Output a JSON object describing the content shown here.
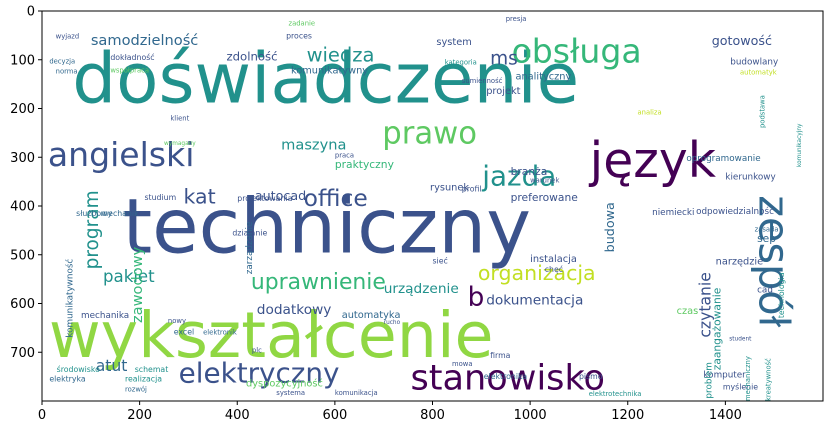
{
  "chart_data": {
    "type": "wordcloud",
    "title": "",
    "xlabel": "",
    "ylabel": "",
    "xlim": [
      0,
      1600
    ],
    "ylim": [
      800,
      0
    ],
    "x_ticks": [
      0,
      200,
      400,
      600,
      800,
      1000,
      1200,
      1400
    ],
    "y_ticks": [
      0,
      100,
      200,
      300,
      400,
      500,
      600,
      700
    ],
    "grid": false,
    "colormap": "viridis",
    "words": [
      {
        "text": "doświadczenie",
        "x": 62,
        "y": 188,
        "size": 142,
        "rotate": 0,
        "color": "#21918c"
      },
      {
        "text": "techniczny",
        "x": 165,
        "y": 495,
        "size": 155,
        "rotate": 0,
        "color": "#3b528b"
      },
      {
        "text": "wykształcenie",
        "x": 14,
        "y": 710,
        "size": 130,
        "rotate": 0,
        "color": "#90d743"
      },
      {
        "text": "język",
        "x": 1122,
        "y": 340,
        "size": 100,
        "rotate": 0,
        "color": "#440154"
      },
      {
        "text": "zespół",
        "x": 1470,
        "y": 378,
        "size": 85,
        "rotate": 90,
        "color": "#31688e"
      },
      {
        "text": "stanowisko",
        "x": 755,
        "y": 776,
        "size": 72,
        "rotate": 0,
        "color": "#440154"
      },
      {
        "text": "obsługa",
        "x": 962,
        "y": 106,
        "size": 68,
        "rotate": 0,
        "color": "#35b779"
      },
      {
        "text": "angielski",
        "x": 12,
        "y": 318,
        "size": 68,
        "rotate": 0,
        "color": "#3b528b"
      },
      {
        "text": "prawo",
        "x": 697,
        "y": 272,
        "size": 63,
        "rotate": 0,
        "color": "#5ec962"
      },
      {
        "text": "elektryczny",
        "x": 280,
        "y": 762,
        "size": 57,
        "rotate": 0,
        "color": "#3b528b"
      },
      {
        "text": "jazda",
        "x": 902,
        "y": 358,
        "size": 57,
        "rotate": 0,
        "color": "#21918c"
      },
      {
        "text": "organizacja",
        "x": 893,
        "y": 552,
        "size": 42,
        "rotate": 0,
        "color": "#c2df23"
      },
      {
        "text": "uprawnienie",
        "x": 428,
        "y": 570,
        "size": 45,
        "rotate": 0,
        "color": "#35b779"
      },
      {
        "text": "office",
        "x": 536,
        "y": 400,
        "size": 48,
        "rotate": 0,
        "color": "#3b528b"
      },
      {
        "text": "wiedza",
        "x": 542,
        "y": 104,
        "size": 40,
        "rotate": 0,
        "color": "#21918c"
      },
      {
        "text": "kat",
        "x": 290,
        "y": 395,
        "size": 42,
        "rotate": 0,
        "color": "#3b528b"
      },
      {
        "text": "program",
        "x": 115,
        "y": 530,
        "size": 38,
        "rotate": -90,
        "color": "#21918c"
      },
      {
        "text": "pakiet",
        "x": 125,
        "y": 556,
        "size": 34,
        "rotate": 0,
        "color": "#21918c"
      },
      {
        "text": "atut",
        "x": 110,
        "y": 738,
        "size": 32,
        "rotate": 0,
        "color": "#31688e"
      },
      {
        "text": "dokumentacja",
        "x": 910,
        "y": 602,
        "size": 28,
        "rotate": 0,
        "color": "#3b528b"
      },
      {
        "text": "czytanie",
        "x": 1370,
        "y": 670,
        "size": 32,
        "rotate": -90,
        "color": "#3b528b"
      },
      {
        "text": "samodzielność",
        "x": 100,
        "y": 70,
        "size": 30,
        "rotate": 0,
        "color": "#31688e"
      },
      {
        "text": "maszyna",
        "x": 490,
        "y": 284,
        "size": 30,
        "rotate": 0,
        "color": "#21918c"
      },
      {
        "text": "zawodowy",
        "x": 205,
        "y": 640,
        "size": 30,
        "rotate": -90,
        "color": "#35b779"
      },
      {
        "text": "gotowość",
        "x": 1372,
        "y": 70,
        "size": 26,
        "rotate": 0,
        "color": "#3b528b"
      },
      {
        "text": "ms",
        "x": 918,
        "y": 110,
        "size": 38,
        "rotate": 0,
        "color": "#3b528b"
      },
      {
        "text": "b",
        "x": 872,
        "y": 605,
        "size": 54,
        "rotate": 0,
        "color": "#440154"
      },
      {
        "text": "urządzenie",
        "x": 700,
        "y": 578,
        "size": 28,
        "rotate": 0,
        "color": "#21918c"
      },
      {
        "text": "dodatkowy",
        "x": 440,
        "y": 622,
        "size": 28,
        "rotate": 0,
        "color": "#3b528b"
      },
      {
        "text": "autocad",
        "x": 436,
        "y": 388,
        "size": 26,
        "rotate": 0,
        "color": "#3b528b"
      },
      {
        "text": "dyspozycyjność",
        "x": 418,
        "y": 770,
        "size": 20,
        "rotate": 0,
        "color": "#5ec962"
      },
      {
        "text": "zdolność",
        "x": 378,
        "y": 102,
        "size": 24,
        "rotate": 0,
        "color": "#3b528b"
      },
      {
        "text": "komunikatywność",
        "x": 62,
        "y": 670,
        "size": 18,
        "rotate": -90,
        "color": "#31688e"
      },
      {
        "text": "zaangażowanie",
        "x": 1390,
        "y": 737,
        "size": 22,
        "rotate": -90,
        "color": "#21918c"
      },
      {
        "text": "budowa",
        "x": 1172,
        "y": 495,
        "size": 26,
        "rotate": -90,
        "color": "#31688e"
      },
      {
        "text": "preferowane",
        "x": 960,
        "y": 390,
        "size": 22,
        "rotate": 0,
        "color": "#3b528b"
      },
      {
        "text": "instalacja",
        "x": 1000,
        "y": 515,
        "size": 20,
        "rotate": 0,
        "color": "#3b528b"
      },
      {
        "text": "branża",
        "x": 960,
        "y": 336,
        "size": 22,
        "rotate": 0,
        "color": "#3b528b"
      },
      {
        "text": "system",
        "x": 808,
        "y": 70,
        "size": 20,
        "rotate": 0,
        "color": "#3b528b"
      },
      {
        "text": "narzędzie",
        "x": 1380,
        "y": 520,
        "size": 20,
        "rotate": 0,
        "color": "#3b528b"
      },
      {
        "text": "sep",
        "x": 1465,
        "y": 474,
        "size": 22,
        "rotate": 0,
        "color": "#31688e"
      },
      {
        "text": "automatyka",
        "x": 614,
        "y": 630,
        "size": 20,
        "rotate": 0,
        "color": "#31688e"
      },
      {
        "text": "praktyczny",
        "x": 600,
        "y": 322,
        "size": 22,
        "rotate": 0,
        "color": "#35b779"
      },
      {
        "text": "komunikatywny",
        "x": 510,
        "y": 128,
        "size": 20,
        "rotate": 0,
        "color": "#31688e"
      },
      {
        "text": "analityczny",
        "x": 970,
        "y": 140,
        "size": 20,
        "rotate": 0,
        "color": "#31688e"
      },
      {
        "text": "oprogramowanie",
        "x": 1320,
        "y": 308,
        "size": 18,
        "rotate": 0,
        "color": "#31688e"
      },
      {
        "text": "budowlany",
        "x": 1410,
        "y": 110,
        "size": 18,
        "rotate": 0,
        "color": "#3b528b"
      },
      {
        "text": "odpowiedzialność",
        "x": 1340,
        "y": 416,
        "size": 18,
        "rotate": 0,
        "color": "#3b528b"
      },
      {
        "text": "niemiecki",
        "x": 1250,
        "y": 418,
        "size": 18,
        "rotate": 0,
        "color": "#3b528b"
      },
      {
        "text": "kierunkowy",
        "x": 1400,
        "y": 346,
        "size": 18,
        "rotate": 0,
        "color": "#3b528b"
      },
      {
        "text": "projekt",
        "x": 910,
        "y": 170,
        "size": 20,
        "rotate": 0,
        "color": "#3b528b"
      },
      {
        "text": "rysunek",
        "x": 795,
        "y": 368,
        "size": 20,
        "rotate": 0,
        "color": "#3b528b"
      },
      {
        "text": "działanie",
        "x": 390,
        "y": 460,
        "size": 16,
        "rotate": 0,
        "color": "#3b528b"
      },
      {
        "text": "zarządzanie",
        "x": 430,
        "y": 540,
        "size": 18,
        "rotate": -90,
        "color": "#31688e"
      },
      {
        "text": "dokładność",
        "x": 140,
        "y": 100,
        "size": 16,
        "rotate": 0,
        "color": "#3b528b"
      },
      {
        "text": "mechanika",
        "x": 80,
        "y": 630,
        "size": 18,
        "rotate": 0,
        "color": "#3b528b"
      },
      {
        "text": "mechanik",
        "x": 120,
        "y": 420,
        "size": 16,
        "rotate": 0,
        "color": "#31688e"
      },
      {
        "text": "służbowy",
        "x": 70,
        "y": 420,
        "size": 16,
        "rotate": 0,
        "color": "#31688e"
      },
      {
        "text": "studium",
        "x": 210,
        "y": 388,
        "size": 16,
        "rotate": 0,
        "color": "#3b528b"
      },
      {
        "text": "projektowania",
        "x": 400,
        "y": 390,
        "size": 16,
        "rotate": 0,
        "color": "#3b528b"
      },
      {
        "text": "komputer",
        "x": 1355,
        "y": 752,
        "size": 18,
        "rotate": 0,
        "color": "#3b528b"
      },
      {
        "text": "myślenie",
        "x": 1395,
        "y": 776,
        "size": 16,
        "rotate": 0,
        "color": "#3b528b"
      },
      {
        "text": "problem",
        "x": 1372,
        "y": 795,
        "size": 18,
        "rotate": -90,
        "color": "#21918c"
      },
      {
        "text": "mechaniczny",
        "x": 1450,
        "y": 800,
        "size": 14,
        "rotate": -90,
        "color": "#21918c"
      },
      {
        "text": "technologia",
        "x": 1520,
        "y": 630,
        "size": 16,
        "rotate": -90,
        "color": "#21918c"
      },
      {
        "text": "kreatywność",
        "x": 1492,
        "y": 800,
        "size": 14,
        "rotate": -90,
        "color": "#21918c"
      },
      {
        "text": "cad",
        "x": 1465,
        "y": 577,
        "size": 18,
        "rotate": 0,
        "color": "#3b528b"
      },
      {
        "text": "zasada",
        "x": 1460,
        "y": 452,
        "size": 14,
        "rotate": 0,
        "color": "#31688e"
      },
      {
        "text": "czas",
        "x": 1300,
        "y": 622,
        "size": 20,
        "rotate": 0,
        "color": "#5ec962"
      },
      {
        "text": "firma",
        "x": 918,
        "y": 712,
        "size": 16,
        "rotate": 0,
        "color": "#3b528b"
      },
      {
        "text": "elektronika",
        "x": 905,
        "y": 755,
        "size": 16,
        "rotate": 0,
        "color": "#31688e"
      },
      {
        "text": "pismo",
        "x": 1100,
        "y": 755,
        "size": 16,
        "rotate": 0,
        "color": "#3b528b"
      },
      {
        "text": "elektrotechnika",
        "x": 1120,
        "y": 790,
        "size": 14,
        "rotate": 0,
        "color": "#21918c"
      },
      {
        "text": "realizacja",
        "x": 170,
        "y": 760,
        "size": 16,
        "rotate": 0,
        "color": "#21918c"
      },
      {
        "text": "schemat",
        "x": 190,
        "y": 740,
        "size": 16,
        "rotate": 0,
        "color": "#21918c"
      },
      {
        "text": "środowisko",
        "x": 30,
        "y": 740,
        "size": 16,
        "rotate": 0,
        "color": "#21918c"
      },
      {
        "text": "elektryka",
        "x": 15,
        "y": 760,
        "size": 16,
        "rotate": 0,
        "color": "#31688e"
      },
      {
        "text": "komunikacja",
        "x": 600,
        "y": 788,
        "size": 14,
        "rotate": 0,
        "color": "#3b528b"
      },
      {
        "text": "systema",
        "x": 480,
        "y": 788,
        "size": 14,
        "rotate": 0,
        "color": "#3b528b"
      },
      {
        "text": "excel",
        "x": 270,
        "y": 664,
        "size": 16,
        "rotate": 0,
        "color": "#31688e"
      },
      {
        "text": "elektronik",
        "x": 330,
        "y": 664,
        "size": 14,
        "rotate": 0,
        "color": "#31688e"
      },
      {
        "text": "plc",
        "x": 430,
        "y": 700,
        "size": 14,
        "rotate": 0,
        "color": "#3b528b"
      },
      {
        "text": "mowa",
        "x": 840,
        "y": 728,
        "size": 14,
        "rotate": 0,
        "color": "#3b528b"
      },
      {
        "text": "sieć",
        "x": 800,
        "y": 518,
        "size": 16,
        "rotate": 0,
        "color": "#3b528b"
      },
      {
        "text": "chęć",
        "x": 1030,
        "y": 535,
        "size": 16,
        "rotate": 0,
        "color": "#3b528b"
      },
      {
        "text": "presja",
        "x": 950,
        "y": 20,
        "size": 14,
        "rotate": 0,
        "color": "#3b528b"
      },
      {
        "text": "proces",
        "x": 500,
        "y": 56,
        "size": 16,
        "rotate": 0,
        "color": "#3b528b"
      },
      {
        "text": "zadanie",
        "x": 505,
        "y": 30,
        "size": 14,
        "rotate": 0,
        "color": "#5ec962"
      },
      {
        "text": "kategoria",
        "x": 825,
        "y": 110,
        "size": 14,
        "rotate": 0,
        "color": "#21918c"
      },
      {
        "text": "sumienność",
        "x": 860,
        "y": 148,
        "size": 14,
        "rotate": 0,
        "color": "#3b528b"
      },
      {
        "text": "klient",
        "x": 263,
        "y": 225,
        "size": 14,
        "rotate": 0,
        "color": "#3b528b"
      },
      {
        "text": "profil",
        "x": 860,
        "y": 370,
        "size": 16,
        "rotate": 0,
        "color": "#3b528b"
      },
      {
        "text": "praca",
        "x": 600,
        "y": 300,
        "size": 14,
        "rotate": 0,
        "color": "#3b528b"
      },
      {
        "text": "warunek",
        "x": 1000,
        "y": 352,
        "size": 14,
        "rotate": 0,
        "color": "#3b528b"
      },
      {
        "text": "analiza",
        "x": 1220,
        "y": 212,
        "size": 14,
        "rotate": 0,
        "color": "#c2df23"
      },
      {
        "text": "wyjazd",
        "x": 28,
        "y": 56,
        "size": 14,
        "rotate": 0,
        "color": "#3b528b"
      },
      {
        "text": "decyzja",
        "x": 15,
        "y": 108,
        "size": 14,
        "rotate": 0,
        "color": "#31688e"
      },
      {
        "text": "norma",
        "x": 28,
        "y": 128,
        "size": 14,
        "rotate": 0,
        "color": "#31688e"
      },
      {
        "text": "współpraca",
        "x": 140,
        "y": 126,
        "size": 14,
        "rotate": 0,
        "color": "#5ec962"
      },
      {
        "text": "automatyk",
        "x": 1430,
        "y": 130,
        "size": 14,
        "rotate": 0,
        "color": "#c2df23"
      },
      {
        "text": "podstawa",
        "x": 1480,
        "y": 240,
        "size": 14,
        "rotate": -90,
        "color": "#21918c"
      },
      {
        "text": "komunikacyjny",
        "x": 1555,
        "y": 320,
        "size": 12,
        "rotate": -90,
        "color": "#21918c"
      },
      {
        "text": "student",
        "x": 1408,
        "y": 676,
        "size": 12,
        "rotate": 0,
        "color": "#3b528b"
      },
      {
        "text": "rozwój",
        "x": 170,
        "y": 780,
        "size": 14,
        "rotate": 0,
        "color": "#31688e"
      },
      {
        "text": "rucho",
        "x": 700,
        "y": 642,
        "size": 12,
        "rotate": 0,
        "color": "#3b528b"
      },
      {
        "text": "nowy",
        "x": 258,
        "y": 640,
        "size": 14,
        "rotate": 0,
        "color": "#3b528b"
      },
      {
        "text": "wymagany",
        "x": 250,
        "y": 275,
        "size": 12,
        "rotate": 0,
        "color": "#5ec962"
      }
    ]
  }
}
